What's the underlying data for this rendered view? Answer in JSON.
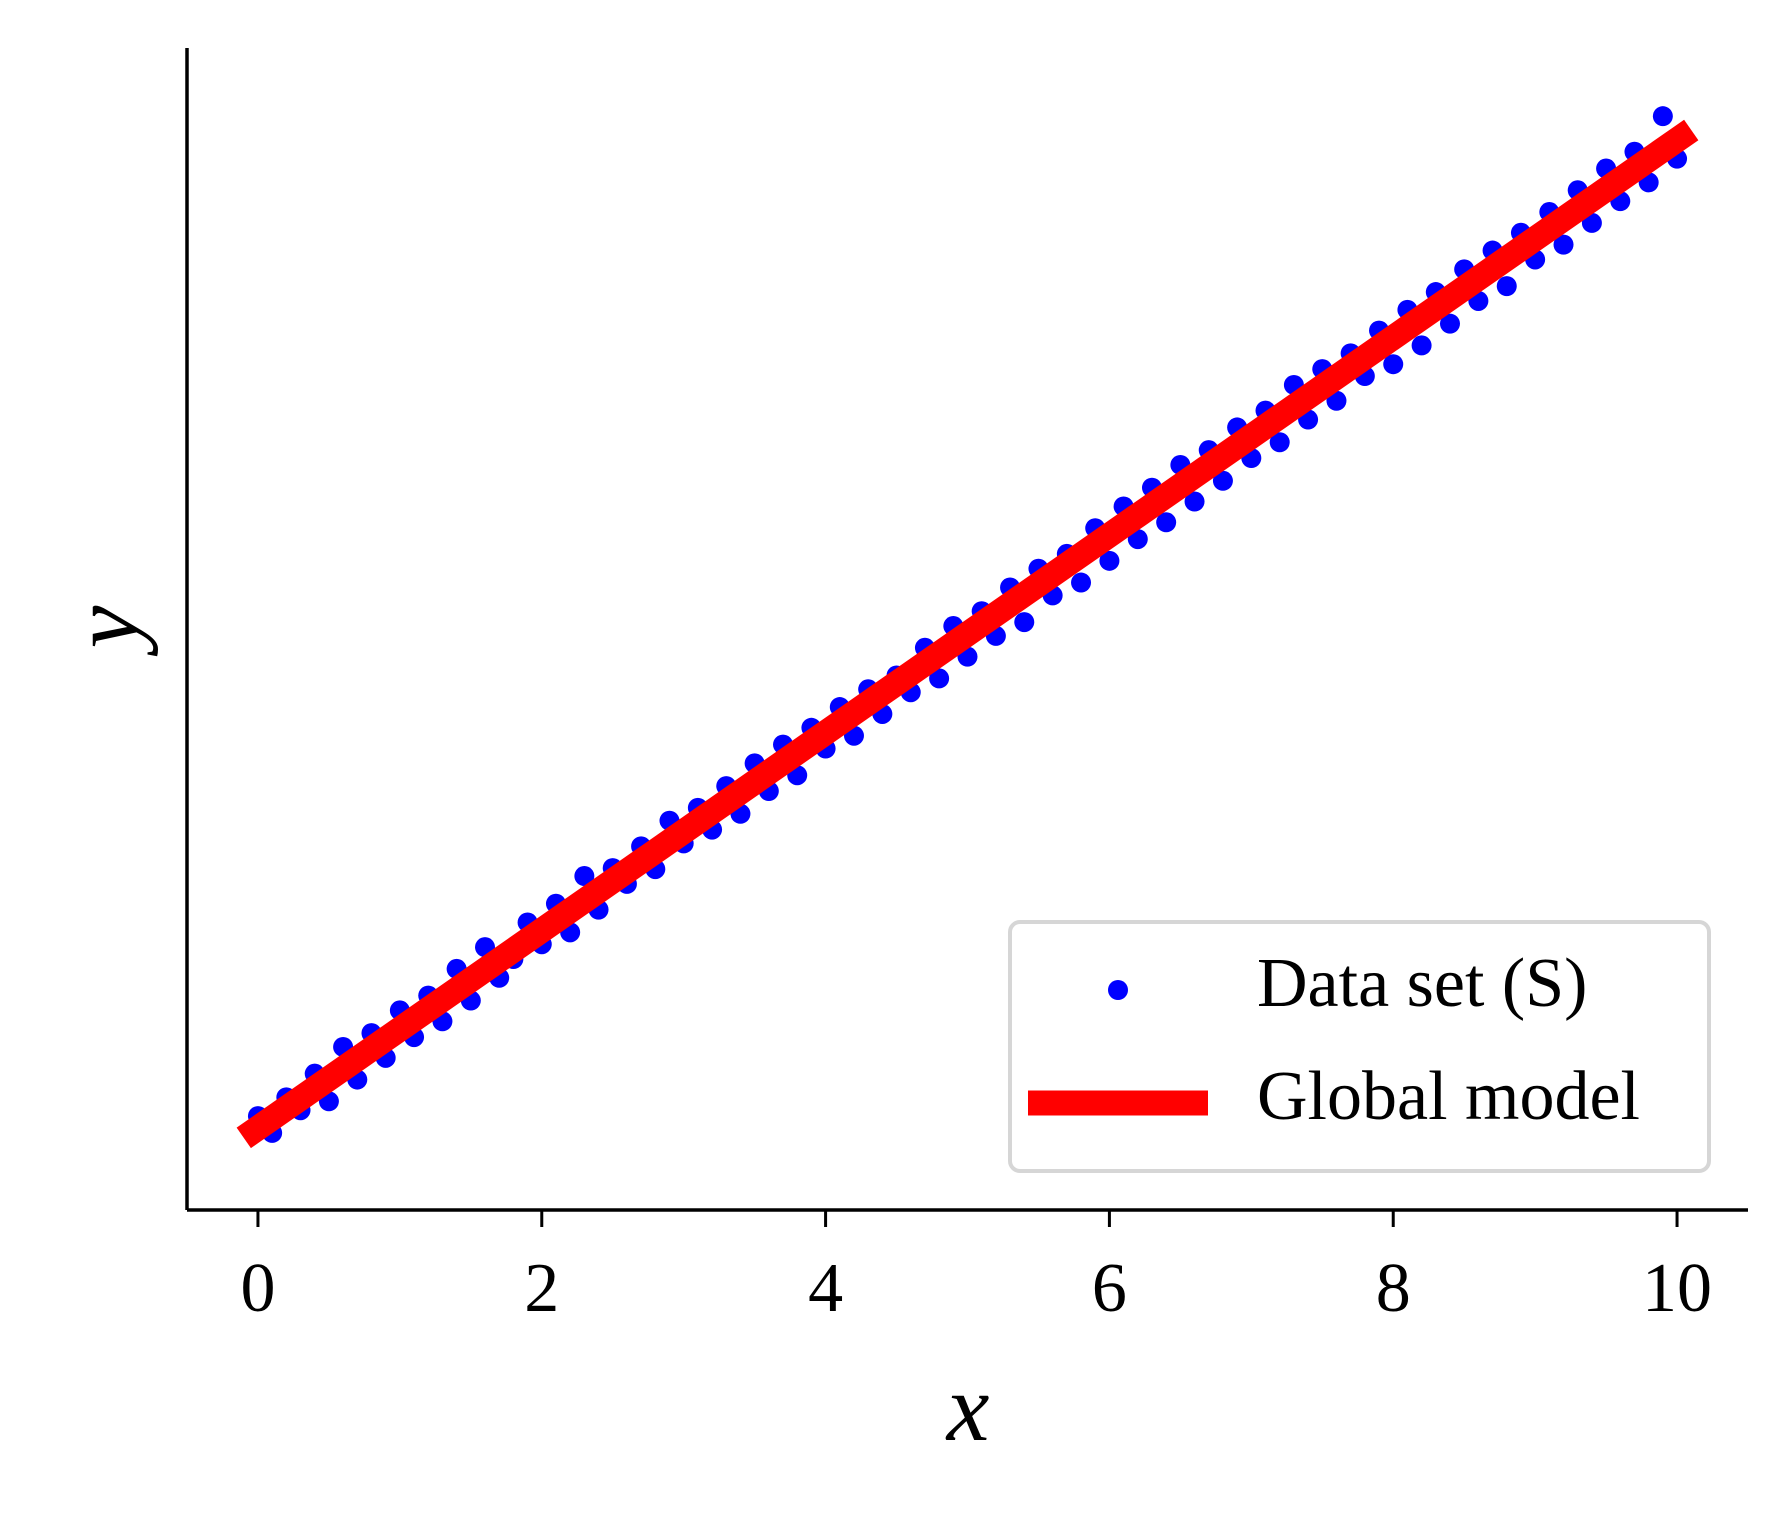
{
  "chart_data": {
    "type": "scatter",
    "x_label": "x",
    "y_label": "y",
    "xlim": [
      -0.5,
      10.5
    ],
    "ylim": [
      -0.83,
      10.93
    ],
    "xticks": [
      0,
      2,
      4,
      6,
      8,
      10
    ],
    "legend": "lower right",
    "series": [
      {
        "name": "Data set (S)",
        "color": "#0000ff",
        "kind": "scatter",
        "x": [
          0,
          0.1,
          0.2,
          0.3,
          0.4,
          0.5,
          0.6,
          0.7,
          0.8,
          0.9,
          1,
          1.1,
          1.2,
          1.3,
          1.4,
          1.5,
          1.6,
          1.7,
          1.8,
          1.9,
          2,
          2.1,
          2.2,
          2.3,
          2.4,
          2.5,
          2.6,
          2.7,
          2.8,
          2.9,
          3,
          3.1,
          3.2,
          3.3,
          3.4,
          3.5,
          3.6,
          3.7,
          3.8,
          3.9,
          4,
          4.1,
          4.2,
          4.3,
          4.4,
          4.5,
          4.6,
          4.7,
          4.8,
          4.9,
          5,
          5.1,
          5.2,
          5.3,
          5.4,
          5.5,
          5.6,
          5.7,
          5.8,
          5.9,
          6,
          6.1,
          6.2,
          6.3,
          6.4,
          6.5,
          6.6,
          6.7,
          6.8,
          6.9,
          7,
          7.1,
          7.2,
          7.3,
          7.4,
          7.5,
          7.6,
          7.7,
          7.8,
          7.9,
          8,
          8.1,
          8.2,
          8.3,
          8.4,
          8.5,
          8.6,
          8.7,
          8.8,
          8.9,
          9,
          9.1,
          9.2,
          9.3,
          9.4,
          9.5,
          9.6,
          9.7,
          9.8,
          9.9,
          10
        ],
        "values": [
          0.12,
          -0.05,
          0.31,
          0.18,
          0.55,
          0.27,
          0.82,
          0.49,
          0.96,
          0.71,
          1.19,
          0.92,
          1.34,
          1.08,
          1.61,
          1.29,
          1.83,
          1.52,
          1.71,
          2.08,
          1.86,
          2.27,
          1.98,
          2.55,
          2.21,
          2.63,
          2.47,
          2.85,
          2.62,
          3.11,
          2.88,
          3.24,
          3.02,
          3.46,
          3.18,
          3.69,
          3.41,
          3.88,
          3.57,
          4.05,
          3.84,
          4.26,
          3.97,
          4.44,
          4.19,
          4.58,
          4.41,
          4.86,
          4.55,
          5.08,
          4.77,
          5.23,
          4.98,
          5.47,
          5.12,
          5.66,
          5.39,
          5.81,
          5.52,
          6.07,
          5.74,
          6.29,
          5.96,
          6.48,
          6.13,
          6.71,
          6.34,
          6.86,
          6.55,
          7.09,
          6.78,
          7.26,
          6.94,
          7.52,
          7.17,
          7.68,
          7.36,
          7.84,
          7.61,
          8.07,
          7.73,
          8.28,
          7.92,
          8.46,
          8.14,
          8.69,
          8.37,
          8.88,
          8.52,
          9.06,
          8.79,
          9.27,
          8.94,
          9.49,
          9.16,
          9.71,
          9.38,
          9.88,
          9.57,
          10.24,
          9.81
        ]
      },
      {
        "name": "Global model",
        "color": "#ff0000",
        "kind": "line",
        "x": [
          -0.1,
          10.1
        ],
        "values": [
          -0.1,
          10.1
        ]
      }
    ]
  }
}
